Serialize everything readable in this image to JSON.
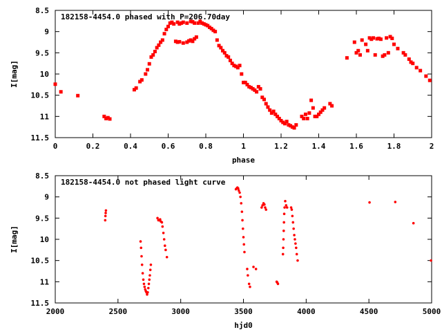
{
  "colors": {
    "points": "#ff0000",
    "axis": "#000000"
  },
  "chart_data": [
    {
      "type": "scatter",
      "title": "182158-4454.0 phased with P=206.70day",
      "xlabel": "phase",
      "ylabel": "I[mag]",
      "xlim": [
        0,
        2
      ],
      "ylim": [
        11.5,
        8.5
      ],
      "y_inverted": true,
      "grid": false,
      "xticks": [
        "0",
        "0.2",
        "0.4",
        "0.6",
        "0.8",
        "1",
        "1.2",
        "1.4",
        "1.6",
        "1.8",
        "2"
      ],
      "yticks": [
        "8.5",
        "9",
        "9.5",
        "10",
        "10.5",
        "11",
        "11.5"
      ],
      "series": [
        {
          "marker": "filled-square",
          "points": [
            [
              0.0,
              10.24
            ],
            [
              0.03,
              10.42
            ],
            [
              0.12,
              10.51
            ],
            [
              0.26,
              11.0
            ],
            [
              0.27,
              11.05
            ],
            [
              0.28,
              11.03
            ],
            [
              0.29,
              11.06
            ],
            [
              0.42,
              10.37
            ],
            [
              0.43,
              10.33
            ],
            [
              0.45,
              10.18
            ],
            [
              0.46,
              10.14
            ],
            [
              0.48,
              10.0
            ],
            [
              0.49,
              9.9
            ],
            [
              0.5,
              9.76
            ],
            [
              0.51,
              9.6
            ],
            [
              0.52,
              9.55
            ],
            [
              0.53,
              9.47
            ],
            [
              0.54,
              9.38
            ],
            [
              0.55,
              9.32
            ],
            [
              0.56,
              9.25
            ],
            [
              0.57,
              9.2
            ],
            [
              0.58,
              9.05
            ],
            [
              0.59,
              8.95
            ],
            [
              0.6,
              8.88
            ],
            [
              0.61,
              8.8
            ],
            [
              0.62,
              8.78
            ],
            [
              0.63,
              8.82
            ],
            [
              0.65,
              8.78
            ],
            [
              0.66,
              8.82
            ],
            [
              0.67,
              8.8
            ],
            [
              0.68,
              8.78
            ],
            [
              0.7,
              8.8
            ],
            [
              0.72,
              8.76
            ],
            [
              0.73,
              8.77
            ],
            [
              0.74,
              8.8
            ],
            [
              0.76,
              8.8
            ],
            [
              0.77,
              8.76
            ],
            [
              0.78,
              8.8
            ],
            [
              0.79,
              8.82
            ],
            [
              0.8,
              8.84
            ],
            [
              0.81,
              8.86
            ],
            [
              0.82,
              8.9
            ],
            [
              0.83,
              8.93
            ],
            [
              0.84,
              8.97
            ],
            [
              0.85,
              9.0
            ],
            [
              0.64,
              9.23
            ],
            [
              0.65,
              9.25
            ],
            [
              0.66,
              9.24
            ],
            [
              0.68,
              9.27
            ],
            [
              0.7,
              9.25
            ],
            [
              0.71,
              9.22
            ],
            [
              0.72,
              9.2
            ],
            [
              0.73,
              9.23
            ],
            [
              0.74,
              9.17
            ],
            [
              0.75,
              9.13
            ],
            [
              0.86,
              9.2
            ],
            [
              0.87,
              9.33
            ],
            [
              0.88,
              9.38
            ],
            [
              0.89,
              9.45
            ],
            [
              0.9,
              9.5
            ],
            [
              0.91,
              9.57
            ],
            [
              0.92,
              9.6
            ],
            [
              0.93,
              9.68
            ],
            [
              0.94,
              9.75
            ],
            [
              0.95,
              9.8
            ],
            [
              0.96,
              9.82
            ],
            [
              0.97,
              9.85
            ],
            [
              0.98,
              9.8
            ],
            [
              0.99,
              10.0
            ],
            [
              1.0,
              10.2
            ],
            [
              1.01,
              10.2
            ],
            [
              1.02,
              10.25
            ],
            [
              1.03,
              10.3
            ],
            [
              1.04,
              10.32
            ],
            [
              1.05,
              10.35
            ],
            [
              1.06,
              10.38
            ],
            [
              1.07,
              10.42
            ],
            [
              1.08,
              10.3
            ],
            [
              1.09,
              10.35
            ],
            [
              1.1,
              10.55
            ],
            [
              1.11,
              10.6
            ],
            [
              1.12,
              10.7
            ],
            [
              1.13,
              10.78
            ],
            [
              1.14,
              10.85
            ],
            [
              1.15,
              10.92
            ],
            [
              1.16,
              10.88
            ],
            [
              1.17,
              10.95
            ],
            [
              1.18,
              11.0
            ],
            [
              1.19,
              11.05
            ],
            [
              1.2,
              11.1
            ],
            [
              1.21,
              11.14
            ],
            [
              1.22,
              11.17
            ],
            [
              1.23,
              11.12
            ],
            [
              1.24,
              11.2
            ],
            [
              1.25,
              11.22
            ],
            [
              1.26,
              11.25
            ],
            [
              1.27,
              11.27
            ],
            [
              1.28,
              11.2
            ],
            [
              1.31,
              11.0
            ],
            [
              1.32,
              11.05
            ],
            [
              1.33,
              10.95
            ],
            [
              1.34,
              11.05
            ],
            [
              1.35,
              10.92
            ],
            [
              1.36,
              10.62
            ],
            [
              1.37,
              10.8
            ],
            [
              1.38,
              11.0
            ],
            [
              1.39,
              11.0
            ],
            [
              1.4,
              10.95
            ],
            [
              1.41,
              10.9
            ],
            [
              1.42,
              10.85
            ],
            [
              1.43,
              10.8
            ],
            [
              1.46,
              10.7
            ],
            [
              1.47,
              10.75
            ],
            [
              1.55,
              9.62
            ],
            [
              1.59,
              9.25
            ],
            [
              1.6,
              9.5
            ],
            [
              1.61,
              9.45
            ],
            [
              1.62,
              9.55
            ],
            [
              1.63,
              9.2
            ],
            [
              1.65,
              9.3
            ],
            [
              1.66,
              9.45
            ],
            [
              1.67,
              9.15
            ],
            [
              1.68,
              9.18
            ],
            [
              1.69,
              9.15
            ],
            [
              1.7,
              9.55
            ],
            [
              1.71,
              9.17
            ],
            [
              1.72,
              9.16
            ],
            [
              1.73,
              9.18
            ],
            [
              1.74,
              9.58
            ],
            [
              1.75,
              9.55
            ],
            [
              1.76,
              9.15
            ],
            [
              1.77,
              9.5
            ],
            [
              1.78,
              9.12
            ],
            [
              1.79,
              9.16
            ],
            [
              1.8,
              9.3
            ],
            [
              1.82,
              9.4
            ],
            [
              1.85,
              9.5
            ],
            [
              1.86,
              9.55
            ],
            [
              1.88,
              9.65
            ],
            [
              1.89,
              9.72
            ],
            [
              1.9,
              9.75
            ],
            [
              1.92,
              9.85
            ],
            [
              1.94,
              9.92
            ],
            [
              1.97,
              10.05
            ],
            [
              1.99,
              10.15
            ]
          ]
        }
      ]
    },
    {
      "type": "scatter",
      "title": "182158-4454.0 not phased light curve",
      "xlabel": "hjd0",
      "ylabel": "I[mag]",
      "xlim": [
        2000,
        5000
      ],
      "ylim": [
        11.5,
        8.5
      ],
      "y_inverted": true,
      "grid": false,
      "xticks": [
        "2000",
        "2500",
        "3000",
        "3500",
        "4000",
        "4500",
        "5000"
      ],
      "yticks": [
        "8.5",
        "9",
        "9.5",
        "10",
        "10.5",
        "11",
        "11.5"
      ],
      "series": [
        {
          "marker": "filled-dot",
          "points": [
            [
              2398,
              9.55
            ],
            [
              2400,
              9.45
            ],
            [
              2402,
              9.38
            ],
            [
              2404,
              9.32
            ],
            [
              2680,
              10.05
            ],
            [
              2684,
              10.2
            ],
            [
              2688,
              10.4
            ],
            [
              2692,
              10.6
            ],
            [
              2697,
              10.8
            ],
            [
              2702,
              10.95
            ],
            [
              2707,
              11.05
            ],
            [
              2712,
              11.12
            ],
            [
              2717,
              11.18
            ],
            [
              2722,
              11.22
            ],
            [
              2727,
              11.25
            ],
            [
              2732,
              11.3
            ],
            [
              2737,
              11.25
            ],
            [
              2742,
              11.15
            ],
            [
              2746,
              11.05
            ],
            [
              2750,
              10.95
            ],
            [
              2754,
              10.85
            ],
            [
              2758,
              10.72
            ],
            [
              2762,
              10.6
            ],
            [
              2815,
              9.5
            ],
            [
              2822,
              9.55
            ],
            [
              2830,
              9.55
            ],
            [
              2836,
              9.53
            ],
            [
              2842,
              9.58
            ],
            [
              2850,
              9.6
            ],
            [
              2855,
              9.7
            ],
            [
              2862,
              9.85
            ],
            [
              2868,
              10.0
            ],
            [
              2874,
              10.15
            ],
            [
              2880,
              10.25
            ],
            [
              2890,
              10.42
            ],
            [
              3440,
              8.82
            ],
            [
              3446,
              8.8
            ],
            [
              3452,
              8.78
            ],
            [
              3458,
              8.8
            ],
            [
              3463,
              8.85
            ],
            [
              3470,
              8.9
            ],
            [
              3476,
              9.0
            ],
            [
              3482,
              9.15
            ],
            [
              3488,
              9.35
            ],
            [
              3492,
              9.55
            ],
            [
              3496,
              9.75
            ],
            [
              3500,
              9.95
            ],
            [
              3504,
              10.12
            ],
            [
              3508,
              10.3
            ],
            [
              3530,
              10.7
            ],
            [
              3535,
              10.85
            ],
            [
              3545,
              11.05
            ],
            [
              3552,
              11.12
            ],
            [
              3580,
              10.65
            ],
            [
              3600,
              10.7
            ],
            [
              3645,
              9.25
            ],
            [
              3652,
              9.2
            ],
            [
              3660,
              9.15
            ],
            [
              3667,
              9.18
            ],
            [
              3673,
              9.25
            ],
            [
              3680,
              9.3
            ],
            [
              3765,
              11.0
            ],
            [
              3770,
              11.02
            ],
            [
              3775,
              11.05
            ],
            [
              3815,
              10.35
            ],
            [
              3817,
              10.2
            ],
            [
              3819,
              10.0
            ],
            [
              3821,
              9.8
            ],
            [
              3823,
              9.6
            ],
            [
              3825,
              9.4
            ],
            [
              3828,
              9.25
            ],
            [
              3833,
              9.1
            ],
            [
              3840,
              9.2
            ],
            [
              3848,
              9.25
            ],
            [
              3880,
              9.25
            ],
            [
              3885,
              9.3
            ],
            [
              3890,
              9.45
            ],
            [
              3895,
              9.6
            ],
            [
              3900,
              9.75
            ],
            [
              3905,
              9.9
            ],
            [
              3910,
              10.0
            ],
            [
              3915,
              10.1
            ],
            [
              3920,
              10.2
            ],
            [
              3925,
              10.35
            ],
            [
              3932,
              10.5
            ],
            [
              4505,
              9.13
            ],
            [
              4710,
              9.12
            ],
            [
              4855,
              9.62
            ],
            [
              4995,
              10.5
            ]
          ]
        }
      ]
    }
  ]
}
